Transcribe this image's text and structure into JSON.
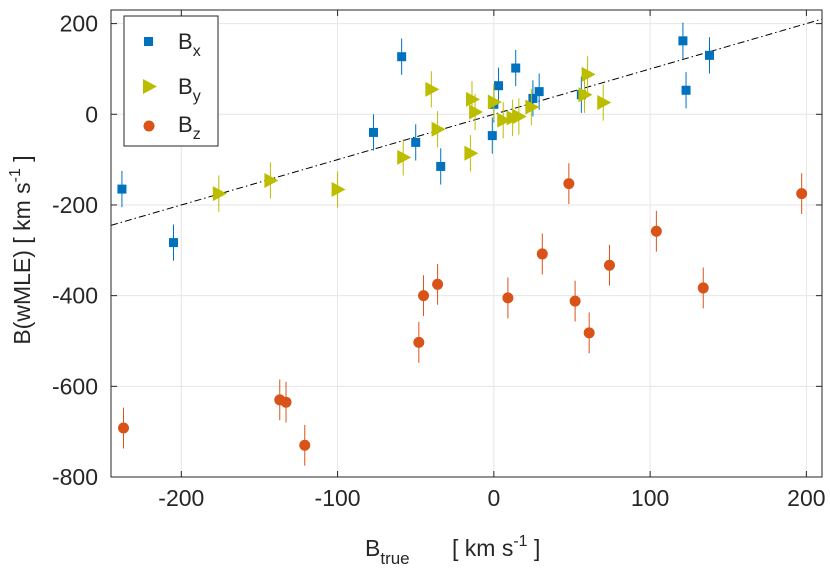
{
  "chart_data": {
    "type": "scatter",
    "title": "",
    "xlabel": {
      "main": "B",
      "sub": "true",
      "units_pre": "[ km s",
      "units_sup": "-1",
      "units_post": " ]"
    },
    "ylabel": {
      "main": "B(wMLE)",
      "units_pre": "[ km s",
      "units_sup": "-1",
      "units_post": " ]"
    },
    "xlim": [
      -245,
      210
    ],
    "ylim": [
      -800,
      230
    ],
    "xticks": [
      -200,
      -100,
      0,
      100,
      200
    ],
    "yticks": [
      -800,
      -600,
      -400,
      -200,
      0,
      200
    ],
    "xtick_labels": [
      "-200",
      "-100",
      "0",
      "100",
      "200"
    ],
    "ytick_labels": [
      "-800",
      "-600",
      "-400",
      "-200",
      "0",
      "200"
    ],
    "grid": true,
    "legend_position": "top-left",
    "reference_line": {
      "style": "dash-dot",
      "color": "#000000",
      "slope": 1,
      "intercept": 0
    },
    "series": [
      {
        "name": "Bx",
        "label_main": "B",
        "label_sub": "x",
        "marker": "square",
        "color": "#0072BD",
        "points": [
          {
            "x": -238,
            "y": -165,
            "err": 40
          },
          {
            "x": -205,
            "y": -283,
            "err": 40
          },
          {
            "x": -77,
            "y": -40,
            "err": 40
          },
          {
            "x": -59,
            "y": 127,
            "err": 40
          },
          {
            "x": -50,
            "y": -62,
            "err": 40
          },
          {
            "x": -34,
            "y": -115,
            "err": 40
          },
          {
            "x": -1,
            "y": -47,
            "err": 40
          },
          {
            "x": 0,
            "y": 22,
            "err": 40
          },
          {
            "x": 3,
            "y": 63,
            "err": 40
          },
          {
            "x": 14,
            "y": 102,
            "err": 40
          },
          {
            "x": 25,
            "y": 35,
            "err": 40
          },
          {
            "x": 29,
            "y": 50,
            "err": 40
          },
          {
            "x": 56,
            "y": 43,
            "err": 40
          },
          {
            "x": 121,
            "y": 162,
            "err": 40
          },
          {
            "x": 123,
            "y": 53,
            "err": 40
          },
          {
            "x": 138,
            "y": 130,
            "err": 40
          }
        ]
      },
      {
        "name": "By",
        "label_main": "B",
        "label_sub": "y",
        "marker": "triangle-right",
        "color": "#BDBD00",
        "points": [
          {
            "x": -176,
            "y": -175,
            "err": 40
          },
          {
            "x": -143,
            "y": -146,
            "err": 40
          },
          {
            "x": -100,
            "y": -166,
            "err": 40
          },
          {
            "x": -58,
            "y": -95,
            "err": 40
          },
          {
            "x": -40,
            "y": 55,
            "err": 40
          },
          {
            "x": -36,
            "y": -33,
            "err": 40
          },
          {
            "x": -15,
            "y": -86,
            "err": 40
          },
          {
            "x": -14,
            "y": 33,
            "err": 40
          },
          {
            "x": -12,
            "y": 5,
            "err": 40
          },
          {
            "x": 0,
            "y": 27,
            "err": 40
          },
          {
            "x": 6,
            "y": -13,
            "err": 40
          },
          {
            "x": 12,
            "y": -8,
            "err": 40
          },
          {
            "x": 16,
            "y": -5,
            "err": 40
          },
          {
            "x": 24,
            "y": 16,
            "err": 40
          },
          {
            "x": 58,
            "y": 43,
            "err": 40
          },
          {
            "x": 60,
            "y": 88,
            "err": 40
          },
          {
            "x": 70,
            "y": 26,
            "err": 40
          }
        ]
      },
      {
        "name": "Bz",
        "label_main": "B",
        "label_sub": "z",
        "marker": "circle",
        "color": "#D95319",
        "points": [
          {
            "x": -237,
            "y": -692,
            "err": 45
          },
          {
            "x": -137,
            "y": -630,
            "err": 45
          },
          {
            "x": -133,
            "y": -635,
            "err": 45
          },
          {
            "x": -121,
            "y": -730,
            "err": 45
          },
          {
            "x": -48,
            "y": -503,
            "err": 45
          },
          {
            "x": -45,
            "y": -400,
            "err": 45
          },
          {
            "x": -36,
            "y": -375,
            "err": 45
          },
          {
            "x": 9,
            "y": -405,
            "err": 45
          },
          {
            "x": 31,
            "y": -308,
            "err": 45
          },
          {
            "x": 48,
            "y": -153,
            "err": 45
          },
          {
            "x": 52,
            "y": -412,
            "err": 45
          },
          {
            "x": 61,
            "y": -482,
            "err": 45
          },
          {
            "x": 74,
            "y": -333,
            "err": 45
          },
          {
            "x": 104,
            "y": -258,
            "err": 45
          },
          {
            "x": 134,
            "y": -383,
            "err": 45
          },
          {
            "x": 197,
            "y": -175,
            "err": 45
          }
        ]
      }
    ]
  }
}
